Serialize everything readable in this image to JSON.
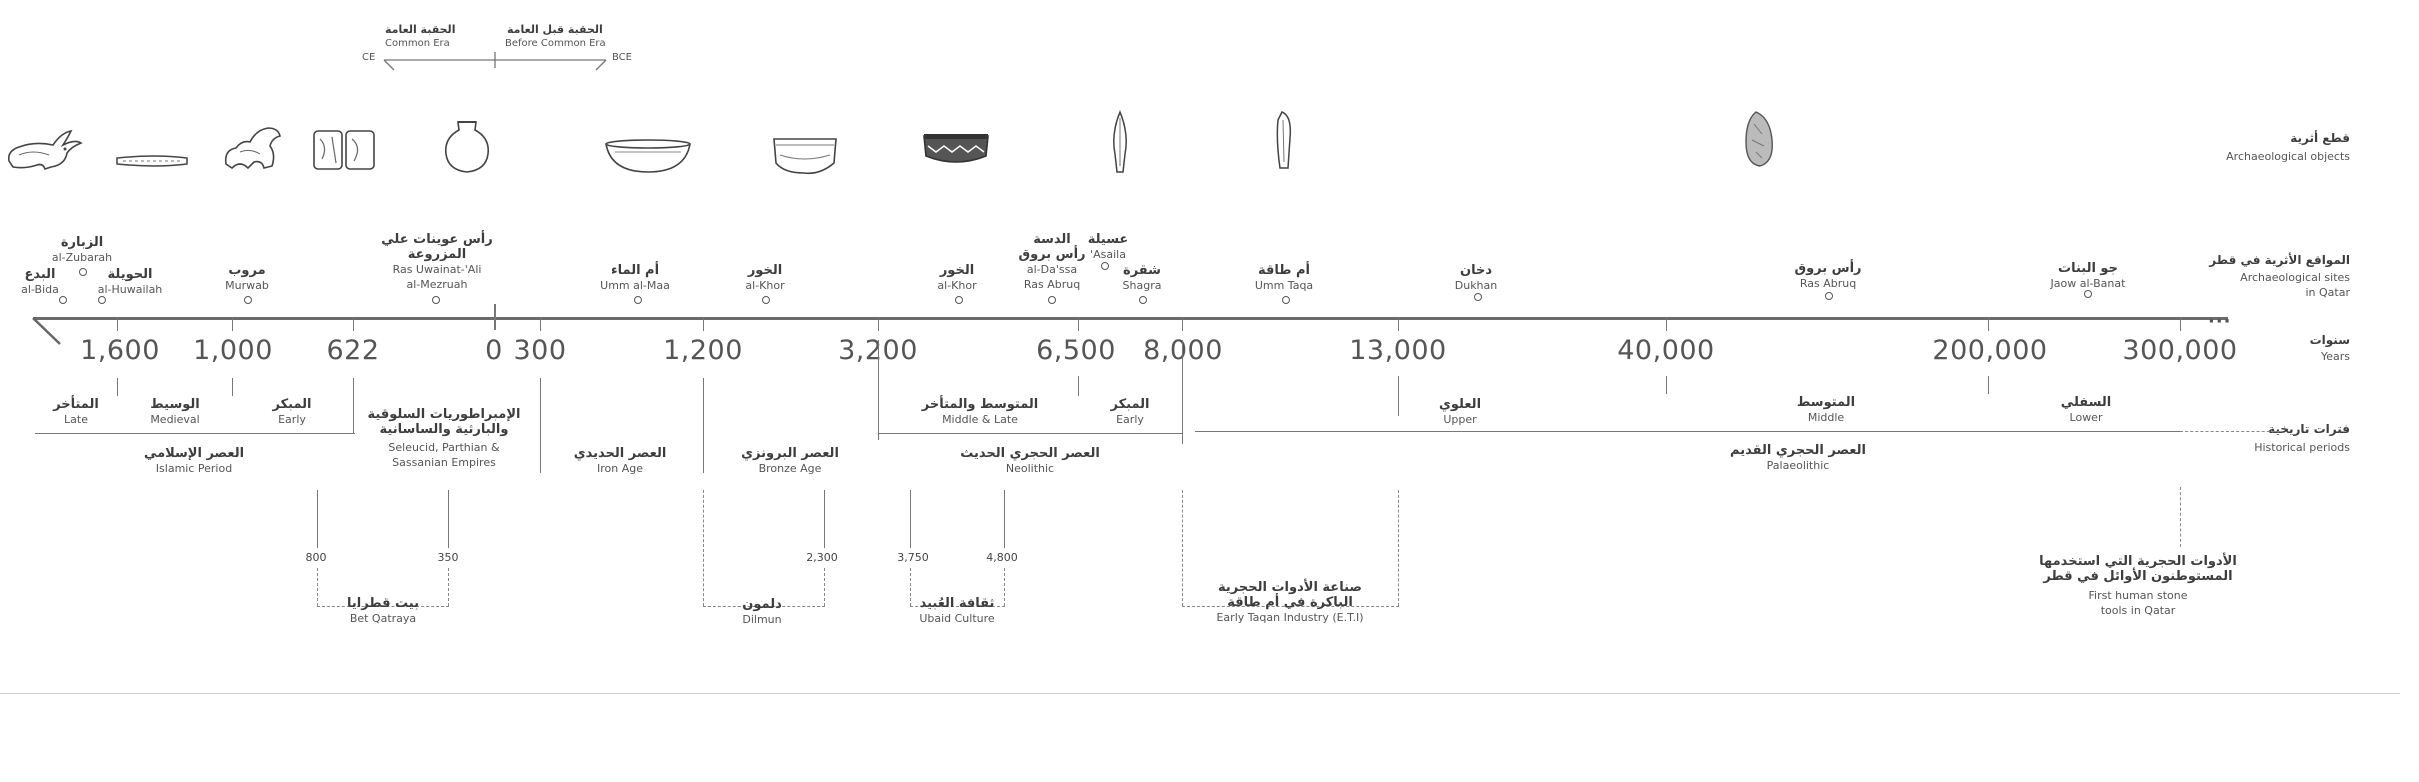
{
  "era_header": {
    "ce_code": "CE",
    "bce_code": "BCE",
    "ce_ar": "الحقبة العامة",
    "ce_en": "Common Era",
    "bce_ar": "الحقبة قبل العامة",
    "bce_en": "Before Common Era"
  },
  "row_labels": {
    "objects_ar": "قطع أثرية",
    "objects_en": "Archaeological objects",
    "sites_ar": "المواقع الأثرية في قطر",
    "sites_en1": "Archaeological sites",
    "sites_en2": "in Qatar",
    "years_ar": "سنوات",
    "years_en": "Years",
    "periods_ar": "فترات تاريخية",
    "periods_en": "Historical periods"
  },
  "sites": {
    "albida_ar": "البدع",
    "albida_en": "al-Bida",
    "zubarah_ar": "الزبارة",
    "zubarah_en": "al-Zubarah",
    "huwailah_ar": "الحويلة",
    "huwailah_en": "al-Huwailah",
    "murwab_ar": "مروب",
    "murwab_en": "Murwab",
    "uwainat_ar1": "رأس عوينات علي",
    "uwainat_ar2": "المزروعة",
    "uwainat_en1": "Ras Uwainat-'Ali",
    "uwainat_en2": "al-Mezruah",
    "ummalmaa_ar": "أم الماء",
    "ummalmaa_en": "Umm al-Maa",
    "alkhor1_ar": "الخور",
    "alkhor1_en": "al-Khor",
    "alkhor2_ar": "الخور",
    "alkhor2_en": "al-Khor",
    "dassa_ar1": "الدسة",
    "dassa_ar2": "رأس بروق",
    "dassa_en1": "al-Da'ssa",
    "dassa_en2": "Ras Abruq",
    "asaila_ar": "عسيلة",
    "asaila_en": "'Asaila",
    "shagra_ar": "شقرة",
    "shagra_en": "Shagra",
    "ummtaqa_ar": "أم طاقة",
    "ummtaqa_en": "Umm Taqa",
    "dukhan_ar": "دخان",
    "dukhan_en": "Dukhan",
    "rasabruq_ar": "رأس بروق",
    "rasabruq_en": "Ras Abruq",
    "jaow_ar": "جو البنات",
    "jaow_en": "Jaow al-Banat"
  },
  "years": [
    "1,600",
    "1,000",
    "622",
    "0",
    "300",
    "1,200",
    "3,200",
    "6,500",
    "8,000",
    "13,000",
    "40,000",
    "200,000",
    "300,000"
  ],
  "periods": {
    "late_ar": "المتأخر",
    "late_en": "Late",
    "medieval_ar": "الوسيط",
    "medieval_en": "Medieval",
    "early_ar": "المبكر",
    "early_en": "Early",
    "islamic_ar": "العصر الإسلامي",
    "islamic_en": "Islamic Period",
    "empires_ar1": "الإمبراطوريات السلوقية",
    "empires_ar2": "والبارثية والساسانية",
    "empires_en1": "Seleucid, Parthian &",
    "empires_en2": "Sassanian Empires",
    "iron_ar": "العصر الحديدي",
    "iron_en": "Iron Age",
    "bronze_ar": "العصر البرونزي",
    "bronze_en": "Bronze Age",
    "midlate_ar": "المتوسط والمتأخر",
    "midlate_en": "Middle & Late",
    "neoearly_ar": "المبكر",
    "neoearly_en": "Early",
    "neolithic_ar": "العصر الحجري الحديث",
    "neolithic_en": "Neolithic",
    "upper_ar": "العلوي",
    "upper_en": "Upper",
    "middle_ar": "المتوسط",
    "middle_en": "Middle",
    "lower_ar": "السفلي",
    "lower_en": "Lower",
    "palaeo_ar": "العصر الحجري القديم",
    "palaeo_en": "Palaeolithic"
  },
  "sub_periods": {
    "bet_start": "800",
    "bet_end": "350",
    "bet_ar": "بيت قطرايا",
    "bet_en": "Bet Qatraya",
    "dilmun_end": "2,300",
    "dilmun_ar": "دلمون",
    "dilmun_en": "Dilmun",
    "ubaid_start": "3,750",
    "ubaid_end": "4,800",
    "ubaid_ar": "ثقافة العُبيد",
    "ubaid_en": "Ubaid Culture",
    "eti_ar1": "صناعة الأدوات الحجرية",
    "eti_ar2": "الباكرة في أم طاقة",
    "eti_en": "Early Taqan Industry (E.T.I)",
    "tools_ar1": "الأدوات الحجرية التي استخدمها",
    "tools_ar2": "المستوطنون الأوائل في قطر",
    "tools_en1": "First human stone",
    "tools_en2": "tools in Qatar"
  },
  "icons": [
    "rabbit-figurine-icon",
    "bead-strip-icon",
    "animal-figurine-icon",
    "carved-fragment-icon",
    "jar-icon",
    "bowl-icon",
    "pot-fragment-icon",
    "painted-pottery-icon",
    "arrowhead-icon",
    "blade-icon",
    "handaxe-icon"
  ]
}
